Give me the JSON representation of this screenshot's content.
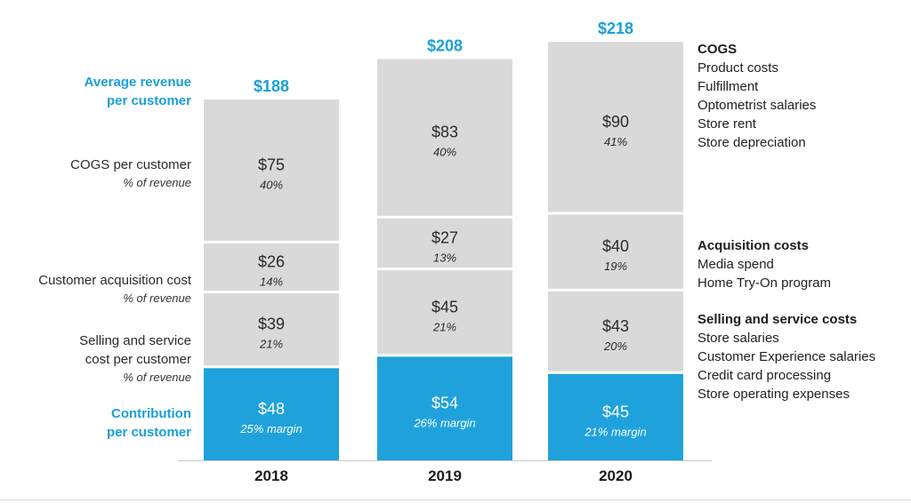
{
  "chart_data": {
    "type": "bar",
    "categories": [
      "2018",
      "2019",
      "2020"
    ],
    "totals": [
      188,
      208,
      218
    ],
    "total_labels": [
      "$188",
      "$208",
      "$218"
    ],
    "series": [
      {
        "name": "Contribution per customer",
        "values": [
          48,
          54,
          45
        ],
        "labels": [
          "$48",
          "$54",
          "$45"
        ],
        "pct_labels": [
          "25% margin",
          "26% margin",
          "21% margin"
        ],
        "color": "#1fa2db",
        "text_color": "#ffffff"
      },
      {
        "name": "Selling and service cost per customer",
        "values": [
          39,
          45,
          43
        ],
        "labels": [
          "$39",
          "$45",
          "$43"
        ],
        "pct_labels": [
          "21%",
          "21%",
          "20%"
        ],
        "color": "#d9d9d9",
        "text_color": "#2b2b2b"
      },
      {
        "name": "Customer acquisition cost",
        "values": [
          26,
          27,
          40
        ],
        "labels": [
          "$26",
          "$27",
          "$40"
        ],
        "pct_labels": [
          "14%",
          "13%",
          "19%"
        ],
        "color": "#d9d9d9",
        "text_color": "#2b2b2b"
      },
      {
        "name": "COGS per customer",
        "values": [
          75,
          83,
          90
        ],
        "labels": [
          "$75",
          "$83",
          "$90"
        ],
        "pct_labels": [
          "40%",
          "40%",
          "41%"
        ],
        "color": "#d9d9d9",
        "text_color": "#2b2b2b"
      }
    ],
    "ylim": [
      0,
      218
    ],
    "grid": false
  },
  "left_labels": {
    "avg_revenue": [
      "Average revenue",
      "per customer"
    ],
    "cogs": "COGS per customer",
    "cogs_sub": "% of revenue",
    "cac": "Customer acquisition cost",
    "cac_sub": "% of revenue",
    "selling": [
      "Selling and service",
      "cost per customer"
    ],
    "selling_sub": "% of revenue",
    "contribution": [
      "Contribution",
      "per customer"
    ]
  },
  "legend": {
    "cogs": {
      "title": "COGS",
      "items": [
        "Product costs",
        "Fulfillment",
        "Optometrist salaries",
        "Store rent",
        "Store depreciation"
      ]
    },
    "acquisition": {
      "title": "Acquisition costs",
      "items": [
        "Media spend",
        "Home Try-On program"
      ]
    },
    "selling": {
      "title": "Selling and service costs",
      "items": [
        "Store salaries",
        "Customer Experience salaries",
        "Credit card processing",
        "Store operating expenses"
      ]
    }
  },
  "colors": {
    "accent": "#1fa2db",
    "accent_text": "#1a9fd9",
    "cost": "#d9d9d9",
    "axis": "#c8c8c8"
  }
}
